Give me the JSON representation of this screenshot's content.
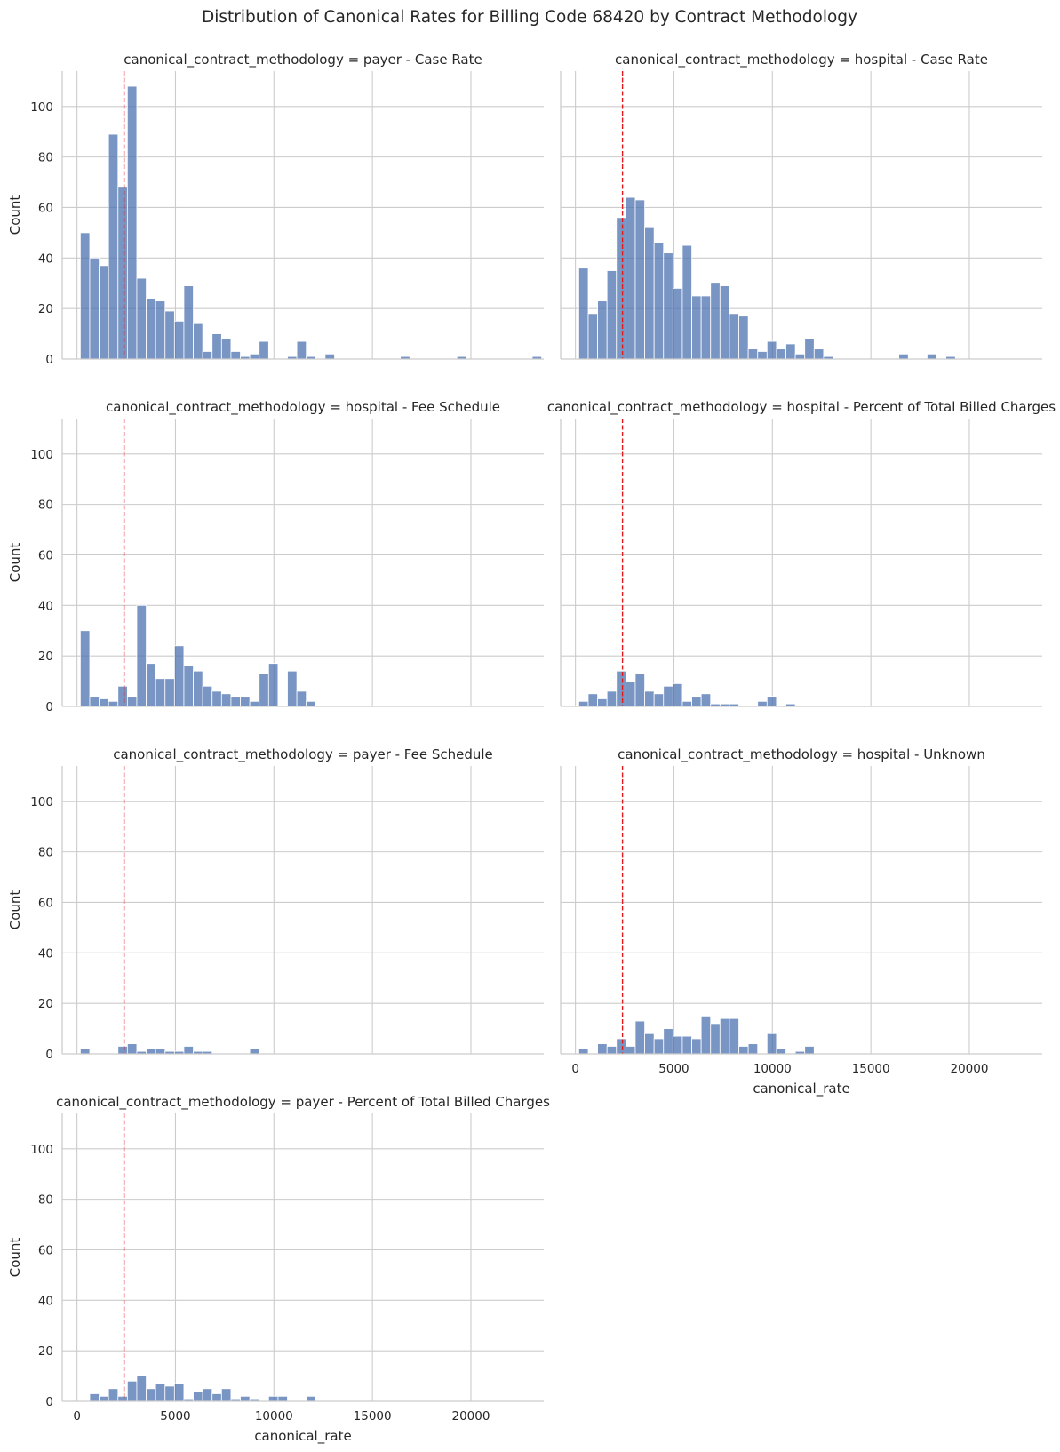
{
  "chart_data": {
    "type": "bar",
    "title": "Distribution of Canonical Rates for Billing Code 68420 by Contract Methodology",
    "xlabel": "canonical_rate",
    "ylabel": "Count",
    "xlim": [
      -750,
      23700
    ],
    "ylim": [
      0,
      114
    ],
    "bin_start": 170,
    "bin_width": 478,
    "reference_line_x": 2390,
    "xticks": [
      0,
      5000,
      10000,
      15000,
      20000
    ],
    "xtick_labels": [
      "0",
      "5000",
      "10000",
      "15000",
      "20000"
    ],
    "yticks": [
      0,
      20,
      40,
      60,
      80,
      100
    ],
    "ytick_labels": [
      "0",
      "20",
      "40",
      "60",
      "80",
      "100"
    ],
    "panels": [
      {
        "title": "canonical_contract_methodology = payer - Case Rate",
        "counts": [
          50,
          40,
          37,
          89,
          68,
          108,
          32,
          24,
          23,
          19,
          15,
          29,
          14,
          3,
          10,
          8,
          3,
          1,
          2,
          7,
          0,
          0,
          1,
          7,
          1,
          0,
          2,
          0,
          0,
          0,
          0,
          0,
          0,
          0,
          1,
          0,
          0,
          0,
          0,
          0,
          1,
          0,
          0,
          0,
          0,
          0,
          0,
          0,
          1
        ]
      },
      {
        "title": "canonical_contract_methodology = hospital - Case Rate",
        "counts": [
          36,
          18,
          23,
          35,
          56,
          64,
          63,
          52,
          46,
          42,
          28,
          45,
          25,
          25,
          30,
          29,
          18,
          17,
          4,
          3,
          7,
          4,
          6,
          2,
          8,
          4,
          1,
          0,
          0,
          0,
          0,
          0,
          0,
          0,
          2,
          0,
          0,
          2,
          0,
          1,
          0,
          0,
          0,
          0,
          0,
          0,
          0,
          0,
          0
        ]
      },
      {
        "title": "canonical_contract_methodology = hospital - Fee Schedule",
        "counts": [
          30,
          4,
          3,
          2,
          8,
          4,
          40,
          17,
          11,
          11,
          24,
          16,
          14,
          8,
          6,
          5,
          4,
          4,
          2,
          13,
          17,
          0,
          14,
          6,
          2,
          0,
          0,
          0,
          0,
          0,
          0,
          0,
          0,
          0,
          0,
          0,
          0,
          0,
          0,
          0,
          0,
          0,
          0,
          0,
          0,
          0,
          0,
          0,
          0
        ]
      },
      {
        "title": "canonical_contract_methodology = hospital - Percent of Total Billed Charges",
        "counts": [
          2,
          5,
          3,
          6,
          14,
          10,
          13,
          6,
          5,
          8,
          9,
          2,
          4,
          5,
          1,
          1,
          1,
          0,
          0,
          2,
          4,
          0,
          1,
          0,
          0,
          0,
          0,
          0,
          0,
          0,
          0,
          0,
          0,
          0,
          0,
          0,
          0,
          0,
          0,
          0,
          0,
          0,
          0,
          0,
          0,
          0,
          0,
          0,
          0
        ]
      },
      {
        "title": "canonical_contract_methodology = payer - Fee Schedule",
        "counts": [
          2,
          0,
          0,
          0,
          3,
          4,
          1,
          2,
          2,
          1,
          1,
          3,
          1,
          1,
          0,
          0,
          0,
          0,
          2,
          0,
          0,
          0,
          0,
          0,
          0,
          0,
          0,
          0,
          0,
          0,
          0,
          0,
          0,
          0,
          0,
          0,
          0,
          0,
          0,
          0,
          0,
          0,
          0,
          0,
          0,
          0,
          0,
          0,
          0
        ]
      },
      {
        "title": "canonical_contract_methodology = hospital - Unknown",
        "counts": [
          2,
          0,
          4,
          3,
          6,
          3,
          13,
          8,
          6,
          10,
          7,
          7,
          6,
          15,
          12,
          14,
          14,
          3,
          4,
          0,
          8,
          2,
          0,
          1,
          3,
          0,
          0,
          0,
          0,
          0,
          0,
          0,
          0,
          0,
          0,
          0,
          0,
          0,
          0,
          0,
          0,
          0,
          0,
          0,
          0,
          0,
          0,
          0,
          0
        ]
      },
      {
        "title": "canonical_contract_methodology = payer - Percent of Total Billed Charges",
        "counts": [
          0,
          3,
          2,
          5,
          2,
          8,
          10,
          5,
          7,
          6,
          7,
          1,
          4,
          5,
          3,
          5,
          1,
          2,
          1,
          0,
          2,
          2,
          0,
          0,
          2,
          0,
          0,
          0,
          0,
          0,
          0,
          0,
          0,
          0,
          0,
          0,
          0,
          0,
          0,
          0,
          0,
          0,
          0,
          0,
          0,
          0,
          0,
          0,
          0
        ]
      }
    ]
  }
}
